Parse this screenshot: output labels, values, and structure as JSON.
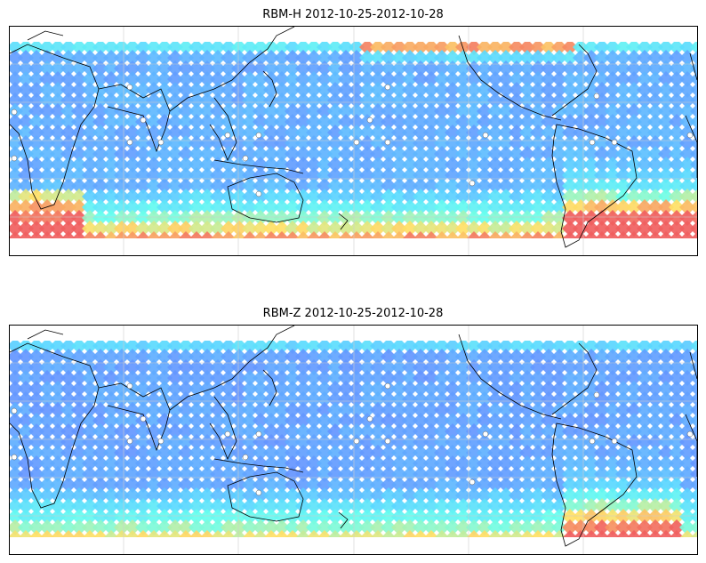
{
  "panels": [
    {
      "title": "RBM-H 2012-10-25-2012-10-28",
      "variant": "H"
    },
    {
      "title": "RBM-Z 2012-10-25-2012-10-28",
      "variant": "Z"
    }
  ],
  "colors": {
    "low": "#6a6cff",
    "mid": "#5ad8ff",
    "cyan": "#66ffee",
    "yellow": "#ffe066",
    "red": "#f06060",
    "grid": "#cccccc",
    "coast": "#000000"
  }
}
